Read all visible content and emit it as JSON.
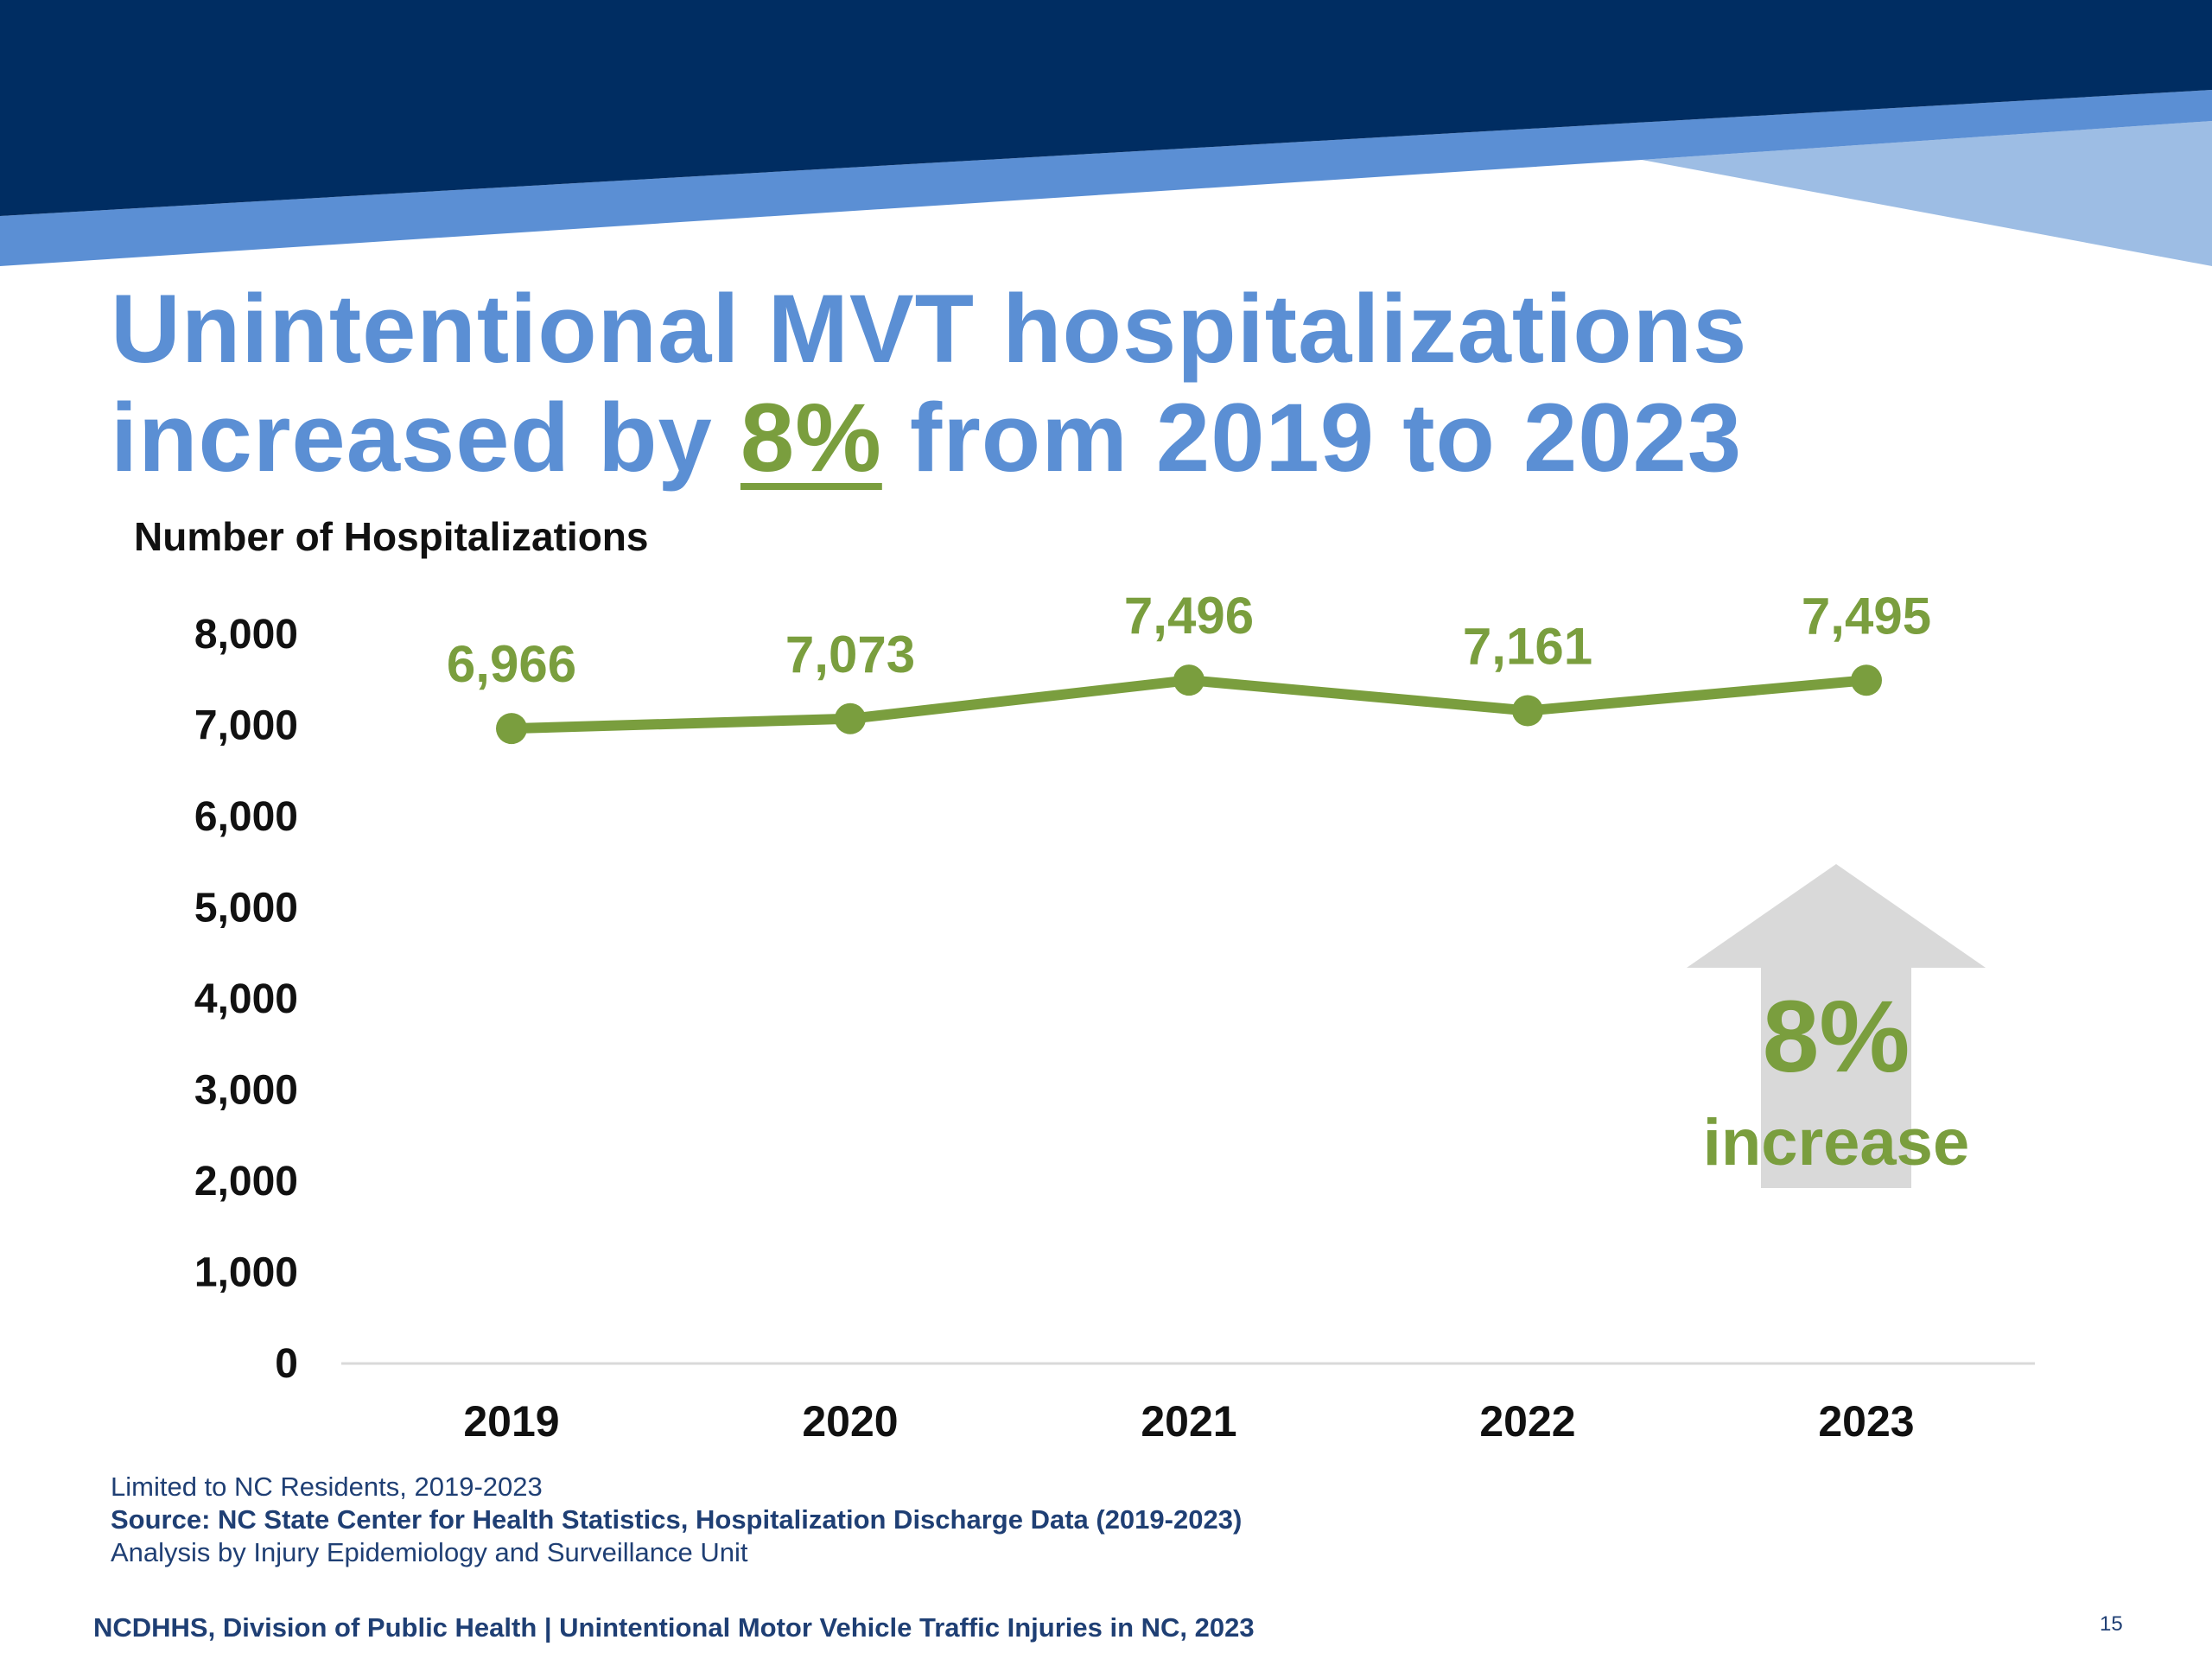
{
  "slide": {
    "title_line1": "Unintentional MVT hospitalizations",
    "title_line2_pre": "increased by ",
    "title_line2_highlight": "8%",
    "title_line2_post": " from 2019 to 2023",
    "footnote_1": "Limited to NC Residents, 2019-2023",
    "footnote_2": "Source: NC State Center for Health Statistics, Hospitalization Discharge Data (2019-2023)",
    "footnote_3": "Analysis by Injury Epidemiology and Surveillance Unit",
    "footer": "NCDHHS, Division of Public Health | Unintentional Motor Vehicle Traffic Injuries in NC, 2023",
    "page_number": "15"
  },
  "colors": {
    "navy": "#002d62",
    "blue_band": "#5b8fd4",
    "light_blue": "#9dbde4",
    "green": "#7a9e3e",
    "arrow_gray": "#d9d9d9"
  },
  "chart_data": {
    "type": "line",
    "ylabel": "Number of Hospitalizations",
    "x": [
      "2019",
      "2020",
      "2021",
      "2022",
      "2023"
    ],
    "values": [
      6966,
      7073,
      7496,
      7161,
      7495
    ],
    "data_labels": [
      "6,966",
      "7,073",
      "7,496",
      "7,161",
      "7,495"
    ],
    "ylim": [
      0,
      8000
    ],
    "yticks": [
      0,
      1000,
      2000,
      3000,
      4000,
      5000,
      6000,
      7000,
      8000
    ],
    "ytick_labels": [
      "0",
      "1,000",
      "2,000",
      "3,000",
      "4,000",
      "5,000",
      "6,000",
      "7,000",
      "8,000"
    ],
    "grid": false,
    "annotation": {
      "icon": "up-arrow-icon",
      "value": "8%",
      "label": "increase"
    }
  }
}
